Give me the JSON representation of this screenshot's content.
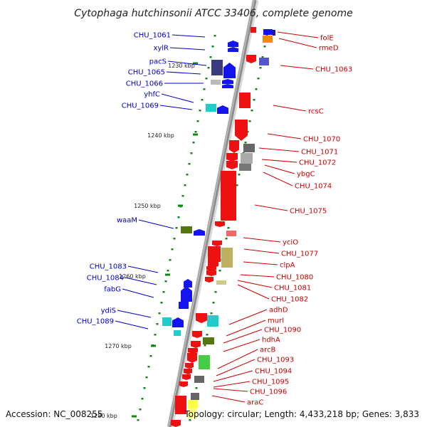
{
  "title": "Cytophaga hutchinsonii ATCC 33406, complete genome",
  "footer": {
    "accession": "Accession: NC_008255",
    "topology": "Topology: circular; Length: 4,433,218 bp; Genes: 3,833"
  },
  "colors": {
    "forward_label": "#0000cc",
    "reverse_label": "#cc0000",
    "backbone": "#8c8c8c",
    "tick": "#118811"
  },
  "ticks": [
    "1230 kbp",
    "1240 kbp",
    "1250 kbp",
    "1260 kbp",
    "1270 kbp",
    "1280 kbp"
  ],
  "left_labels": [
    "CHU_1061",
    "xylR",
    "pacS",
    "CHU_1065",
    "CHU_1066",
    "yhfC",
    "CHU_1069",
    "waaM",
    "CHU_1083",
    "CHU_1084",
    "fabG",
    "ydiS",
    "CHU_1089"
  ],
  "right_labels": [
    "folE",
    "rmeD",
    "CHU_1063",
    "rcsC",
    "CHU_1070",
    "CHU_1071",
    "CHU_1072",
    "ybgC",
    "CHU_1074",
    "CHU_1075",
    "yciO",
    "CHU_1077",
    "clpA",
    "CHU_1080",
    "CHU_1081",
    "CHU_1082",
    "adhD",
    "murI",
    "CHU_1090",
    "hdhA",
    "arcB",
    "CHU_1093",
    "CHU_1094",
    "CHU_1095",
    "CHU_1096",
    "araC"
  ]
}
